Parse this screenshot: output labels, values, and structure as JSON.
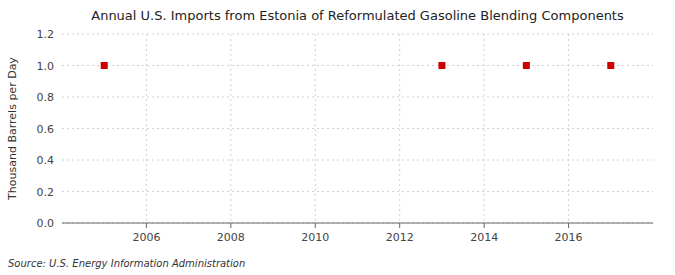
{
  "chart_data": {
    "type": "scatter",
    "title": "Annual U.S. Imports from Estonia of Reformulated Gasoline Blending Components",
    "y_label": "Thousand Barrels per Day",
    "source": "Source: U.S. Energy Information Administration",
    "x": [
      2005,
      2013,
      2015,
      2017
    ],
    "values": [
      1.0,
      1.0,
      1.0,
      1.0
    ],
    "color": "#cc0000",
    "marker": "square",
    "xlim": [
      2004.0,
      2018.0
    ],
    "ylim": [
      0.0,
      1.2
    ],
    "xticks": [
      2006,
      2008,
      2010,
      2012,
      2014,
      2016
    ],
    "yticks": [
      {
        "value": 0.0,
        "label": "0.0"
      },
      0.2,
      0.4,
      0.6,
      0.8,
      {
        "value": 1.0,
        "label": "1.0"
      },
      1.2
    ],
    "grid": true
  }
}
